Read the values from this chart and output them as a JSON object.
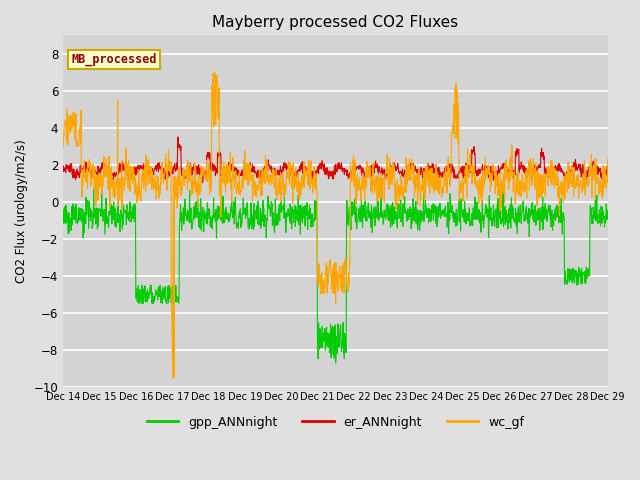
{
  "title": "Mayberry processed CO2 Fluxes",
  "ylabel": "CO2 Flux (urology/m2/s)",
  "ylim": [
    -10,
    9
  ],
  "yticks": [
    -10,
    -8,
    -6,
    -4,
    -2,
    0,
    2,
    4,
    6,
    8
  ],
  "background_color": "#e0e0e0",
  "plot_bg_color": "#d3d3d3",
  "legend_label": "MB_processed",
  "legend_text_color": "#8B0000",
  "legend_box_facecolor": "#ffffcc",
  "legend_box_edgecolor": "#ccaa00",
  "series": {
    "gpp_ANNnight": {
      "color": "#00cc00",
      "linewidth": 0.8
    },
    "er_ANNnight": {
      "color": "#dd0000",
      "linewidth": 0.8
    },
    "wc_gf": {
      "color": "#ffa500",
      "linewidth": 0.8
    }
  },
  "xtick_labels": [
    "Dec 14",
    "Dec 15",
    "Dec 16",
    "Dec 17",
    "Dec 18",
    "Dec 19",
    "Dec 20",
    "Dec 21",
    "Dec 22",
    "Dec 23",
    "Dec 24",
    "Dec 25",
    "Dec 26",
    "Dec 27",
    "Dec 28",
    "Dec 29"
  ],
  "n_points": 1500,
  "seed": 7
}
